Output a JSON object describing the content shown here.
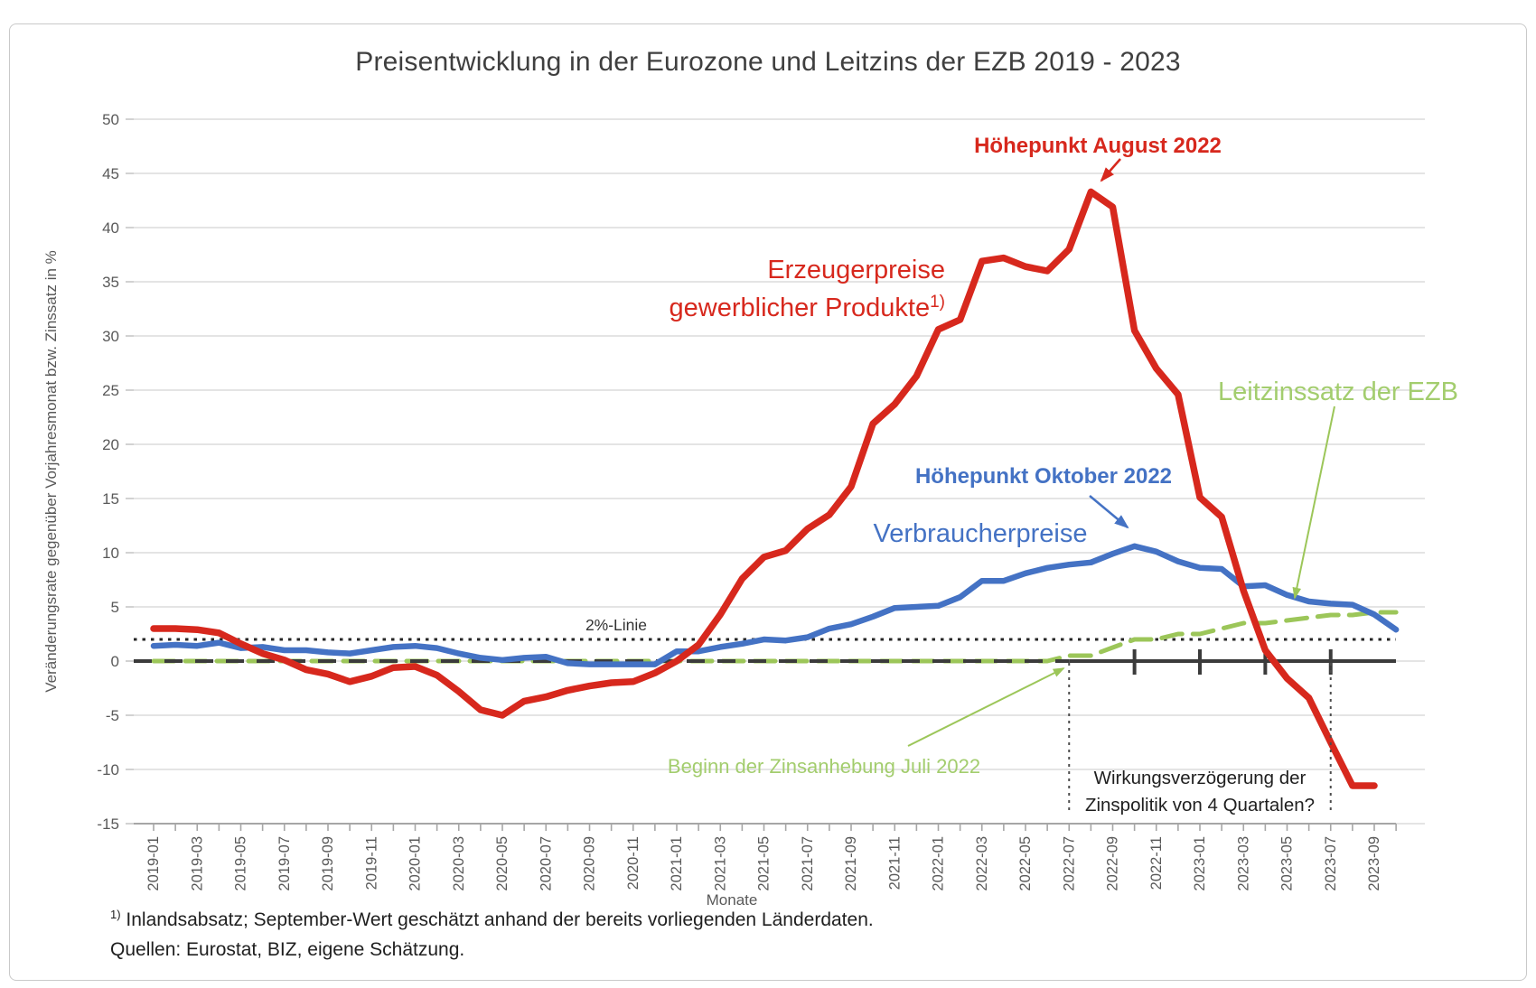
{
  "title": "Preisentwicklung in der Eurozone und Leitzins der EZB 2019 - 2023",
  "footnote": {
    "sup": "1)",
    "line1": "Inlandsabsatz; September-Wert geschätzt anhand der bereits vorliegenden Länderdaten.",
    "line2": "Quellen: Eurostat, BIZ, eigene Schätzung."
  },
  "chart_data": {
    "type": "line",
    "title": "Preisentwicklung in der Eurozone und Leitzins der EZB 2019 - 2023",
    "xlabel": "Monate",
    "ylabel": "Veränderungsrate gegenüber Vorjahresmonat bzw. Zinssatz in %",
    "ylim": [
      -15,
      50
    ],
    "ytick_step": 5,
    "grid": true,
    "legend_position": "inline-labels",
    "x_labels_every": 2,
    "x": [
      "2019-01",
      "2019-02",
      "2019-03",
      "2019-04",
      "2019-05",
      "2019-06",
      "2019-07",
      "2019-08",
      "2019-09",
      "2019-10",
      "2019-11",
      "2019-12",
      "2020-01",
      "2020-02",
      "2020-03",
      "2020-04",
      "2020-05",
      "2020-06",
      "2020-07",
      "2020-08",
      "2020-09",
      "2020-10",
      "2020-11",
      "2020-12",
      "2021-01",
      "2021-02",
      "2021-03",
      "2021-04",
      "2021-05",
      "2021-06",
      "2021-07",
      "2021-08",
      "2021-09",
      "2021-10",
      "2021-11",
      "2021-12",
      "2022-01",
      "2022-02",
      "2022-03",
      "2022-04",
      "2022-05",
      "2022-06",
      "2022-07",
      "2022-08",
      "2022-09",
      "2022-10",
      "2022-11",
      "2022-12",
      "2023-01",
      "2023-02",
      "2023-03",
      "2023-04",
      "2023-05",
      "2023-06",
      "2023-07",
      "2023-08",
      "2023-09",
      "2023-10"
    ],
    "series": [
      {
        "id": "producer",
        "name": "Erzeugerpreise gewerblicher Produkte",
        "footnote_sup": "1)",
        "style": "solid",
        "color": "#D7281D",
        "values": [
          3.0,
          3.0,
          2.9,
          2.6,
          1.6,
          0.7,
          0.1,
          -0.8,
          -1.2,
          -1.9,
          -1.4,
          -0.6,
          -0.5,
          -1.3,
          -2.8,
          -4.5,
          -5.0,
          -3.7,
          -3.3,
          -2.7,
          -2.3,
          -2.0,
          -1.9,
          -1.1,
          0.0,
          1.5,
          4.3,
          7.6,
          9.6,
          10.2,
          12.2,
          13.5,
          16.1,
          21.9,
          23.7,
          26.3,
          30.6,
          31.5,
          36.9,
          37.2,
          36.4,
          36.0,
          38.0,
          43.3,
          41.9,
          30.5,
          27.0,
          24.6,
          15.1,
          13.3,
          6.5,
          1.0,
          -1.6,
          -3.4,
          -7.5,
          -11.5,
          -11.5,
          null
        ]
      },
      {
        "id": "consumer",
        "name": "Verbraucherpreise",
        "style": "solid",
        "color": "#4472C4",
        "values": [
          1.4,
          1.5,
          1.4,
          1.7,
          1.2,
          1.3,
          1.0,
          1.0,
          0.8,
          0.7,
          1.0,
          1.3,
          1.4,
          1.2,
          0.7,
          0.3,
          0.1,
          0.3,
          0.4,
          -0.2,
          -0.3,
          -0.3,
          -0.3,
          -0.3,
          0.9,
          0.9,
          1.3,
          1.6,
          2.0,
          1.9,
          2.2,
          3.0,
          3.4,
          4.1,
          4.9,
          5.0,
          5.1,
          5.9,
          7.4,
          7.4,
          8.1,
          8.6,
          8.9,
          9.1,
          9.9,
          10.6,
          10.1,
          9.2,
          8.6,
          8.5,
          6.9,
          7.0,
          6.1,
          5.5,
          5.3,
          5.2,
          4.3,
          2.9
        ]
      },
      {
        "id": "rate",
        "name": "Leitzinssatz der EZB",
        "style": "dashed",
        "color": "#9CC659",
        "values": [
          0,
          0,
          0,
          0,
          0,
          0,
          0,
          0,
          0,
          0,
          0,
          0,
          0,
          0,
          0,
          0,
          0,
          0,
          0,
          0,
          0,
          0,
          0,
          0,
          0,
          0,
          0,
          0,
          0,
          0,
          0,
          0,
          0,
          0,
          0,
          0,
          0,
          0,
          0,
          0,
          0,
          0,
          0.5,
          0.5,
          1.25,
          2.0,
          2.0,
          2.5,
          2.5,
          3.0,
          3.5,
          3.5,
          3.75,
          4.0,
          4.25,
          4.25,
          4.5,
          4.5
        ]
      }
    ],
    "reference_lines": [
      {
        "id": "two-percent",
        "label": "2%-Linie",
        "value": 2,
        "style": "dotted",
        "color": "#262626"
      },
      {
        "id": "zero",
        "label": "",
        "value": 0,
        "style": "dashed",
        "color": "#3B3B3B"
      }
    ],
    "rate_hike_start": "2022-07",
    "lag_window": {
      "start": "2022-07",
      "end": "2023-07",
      "quarter_ticks": [
        "2022-10",
        "2023-01",
        "2023-04",
        "2023-07"
      ]
    },
    "peaks": {
      "producer": {
        "month": "2022-08",
        "value": 43.3
      },
      "consumer": {
        "month": "2022-10",
        "value": 10.6
      }
    },
    "annotations": {
      "two_percent": "2%-Linie",
      "producer_peak": "Höhepunkt August 2022",
      "consumer_peak": "Höhepunkt Oktober 2022",
      "consumer_series": "Verbraucherpreise",
      "producer_series_line1": "Erzeugerpreise",
      "producer_series_line2": "gewerblicher Produkte",
      "producer_series_sup": "1)",
      "rate_series": "Leitzinssatz der EZB",
      "rate_start": "Beginn der Zinsanhebung Juli 2022",
      "lag_line1": "Wirkungsverzögerung der",
      "lag_line2": "Zinspolitik von 4 Quartalen?"
    },
    "colors": {
      "producer": "#D7281D",
      "consumer": "#4472C4",
      "rate_line": "#9CC659",
      "rate_text": "#A3CD6E",
      "grid": "#DCDCDC",
      "axis_text": "#595959",
      "title": "#3F3F3F",
      "black": "#262626"
    }
  }
}
